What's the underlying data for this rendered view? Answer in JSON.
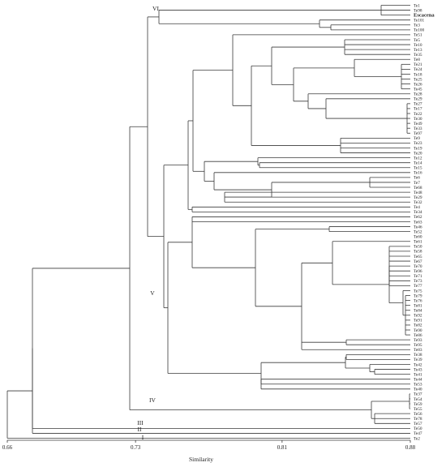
{
  "chart_data": {
    "type": "dendrogram",
    "xlabel": "Similarity",
    "xlim": [
      0.66,
      0.88
    ],
    "ticks": [
      "0.66",
      "0.73",
      "0.81",
      "0.88"
    ],
    "groups": [
      "VI",
      "V",
      "IV",
      "III",
      "II",
      "I"
    ],
    "leaves": [
      "Te1",
      "Te98",
      "Escacena",
      "Te101",
      "Te3",
      "Te100",
      "Te51",
      "Te5",
      "Te10",
      "Te13",
      "Te35",
      "Te8",
      "Te21",
      "Te24",
      "Te18",
      "Te25",
      "Te26",
      "Te45",
      "Te28",
      "Te29",
      "Te27",
      "Te17",
      "Te22",
      "Te30",
      "Te49",
      "Te33",
      "Te97",
      "Te9",
      "Te23",
      "Te19",
      "Te20",
      "Te12",
      "Te14",
      "Te15",
      "Te16",
      "Te6",
      "Te7",
      "Te68",
      "Te48",
      "Te29",
      "Te32",
      "Te4",
      "Te34",
      "Te62",
      "Te63",
      "Te46",
      "Te52",
      "Te60",
      "Te61",
      "Te50",
      "Te58",
      "Te65",
      "Te67",
      "Te70",
      "Te96",
      "Te71",
      "Te73",
      "Te77",
      "Te75",
      "Te79",
      "Te76",
      "Te81",
      "Te84",
      "Te92",
      "Te91",
      "Te82",
      "Te90",
      "Te86",
      "Te93",
      "Te95",
      "Te83",
      "Te38",
      "Te39",
      "Te42",
      "Te43",
      "Te41",
      "Te44",
      "Te53",
      "Te40",
      "Te37",
      "Te54",
      "Te59",
      "Te55",
      "Te56",
      "Te78",
      "Te57",
      "Te50",
      "Te47",
      "Te2"
    ],
    "bold_leaves": [
      "Escacena"
    ]
  }
}
